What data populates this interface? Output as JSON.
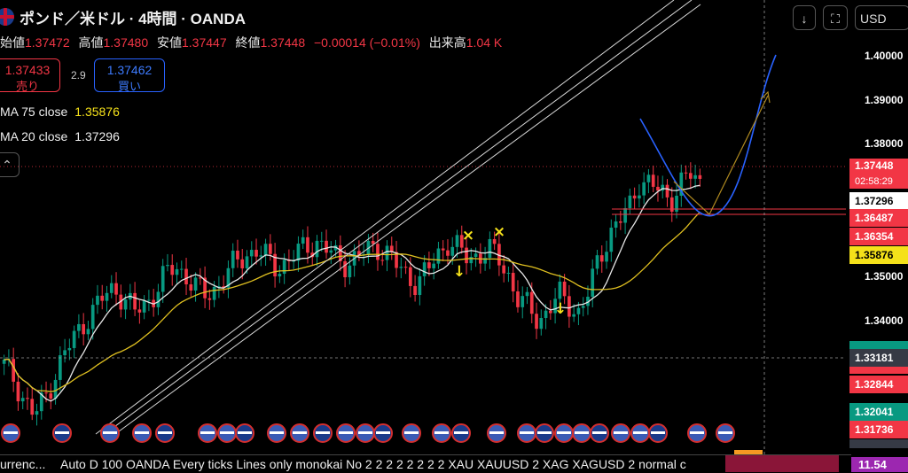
{
  "header": {
    "symbol_title": "ポンド／米ドル · 4時間 · OANDA",
    "ohlc": [
      {
        "label": "始値",
        "value": "1.37472"
      },
      {
        "label": "高値",
        "value": "1.37480"
      },
      {
        "label": "安値",
        "value": "1.37447"
      },
      {
        "label": "終値",
        "value": "1.37448"
      }
    ],
    "change": "−0.00014 (−0.01%)",
    "volume_label": "出来高",
    "volume_value": "1.04 K"
  },
  "trade": {
    "sell_price": "1.37433",
    "sell_label": "売り",
    "spread": "2.9",
    "buy_price": "1.37462",
    "buy_label": "買い"
  },
  "indicators": {
    "ma75_label": "MA 75 close",
    "ma75_value": "1.35876",
    "ma20_label": "MA 20 close",
    "ma20_value": "1.37296"
  },
  "toolbar": {
    "down_icon": "arrow-down-icon",
    "fullscreen_icon": "fullscreen-icon",
    "currency": "USD"
  },
  "price_axis": {
    "ticks": [
      "1.40000",
      "1.39000",
      "1.38000",
      "1.35000",
      "1.34000"
    ],
    "labels": [
      {
        "value": "1.37448",
        "sub": "02:58:29",
        "color": "#f23645"
      },
      {
        "value": "1.37296",
        "color": "#ffffff"
      },
      {
        "value": "1.36487",
        "color": "#f23645"
      },
      {
        "value": "1.36354",
        "color": "#f23645"
      },
      {
        "value": "1.35876",
        "color": "#f5e11a"
      },
      {
        "value": "1.33181",
        "color": "#363a45"
      },
      {
        "value": "1.32844",
        "color": "#f23645"
      },
      {
        "value": "1.32041",
        "color": "#089981"
      },
      {
        "value": "1.31736",
        "color": "#f23645"
      },
      {
        "value": "11.54",
        "color": "#9c27b0"
      }
    ]
  },
  "bottom_bar": {
    "text_left": "urrenc...",
    "text_main": "Auto D 100 OANDA Every ticks Lines only monokai No 2 2 2 2 2 2 2 2 XAU XAUUSD 2 XAG XAGUSD 2 normal c"
  },
  "chart_data": {
    "type": "candlestick",
    "instrument": "GBP/USD",
    "timeframe": "4H",
    "ylim": [
      1.309,
      1.405
    ],
    "last_price": 1.37448,
    "ma75_last": 1.35876,
    "ma20_last": 1.37296,
    "horizontal_levels": [
      1.36487,
      1.36354,
      1.33181
    ],
    "price_path": [
      1.33,
      1.327,
      1.322,
      1.318,
      1.322,
      1.328,
      1.333,
      1.337,
      1.341,
      1.344,
      1.347,
      1.349,
      1.346,
      1.343,
      1.345,
      1.348,
      1.352,
      1.354,
      1.352,
      1.349,
      1.347,
      1.349,
      1.352,
      1.355,
      1.357,
      1.358,
      1.356,
      1.354,
      1.355,
      1.357,
      1.359,
      1.36,
      1.358,
      1.356,
      1.355,
      1.356,
      1.358,
      1.359,
      1.357,
      1.354,
      1.352,
      1.35,
      1.353,
      1.357,
      1.36,
      1.358,
      1.356,
      1.357,
      1.358,
      1.356,
      1.352,
      1.346,
      1.344,
      1.341,
      1.344,
      1.347,
      1.345,
      1.343,
      1.348,
      1.356,
      1.362,
      1.365,
      1.368,
      1.375,
      1.374,
      1.372,
      1.37,
      1.374,
      1.376,
      1.374
    ],
    "signals": [
      {
        "type": "sell-x",
        "label": "×"
      },
      {
        "type": "sell-x",
        "label": "×"
      },
      {
        "type": "down-arrow",
        "label": "↓"
      },
      {
        "type": "down-arrow",
        "label": "↓"
      }
    ],
    "projection_curve": "blue",
    "projection_arrow": "gold"
  }
}
